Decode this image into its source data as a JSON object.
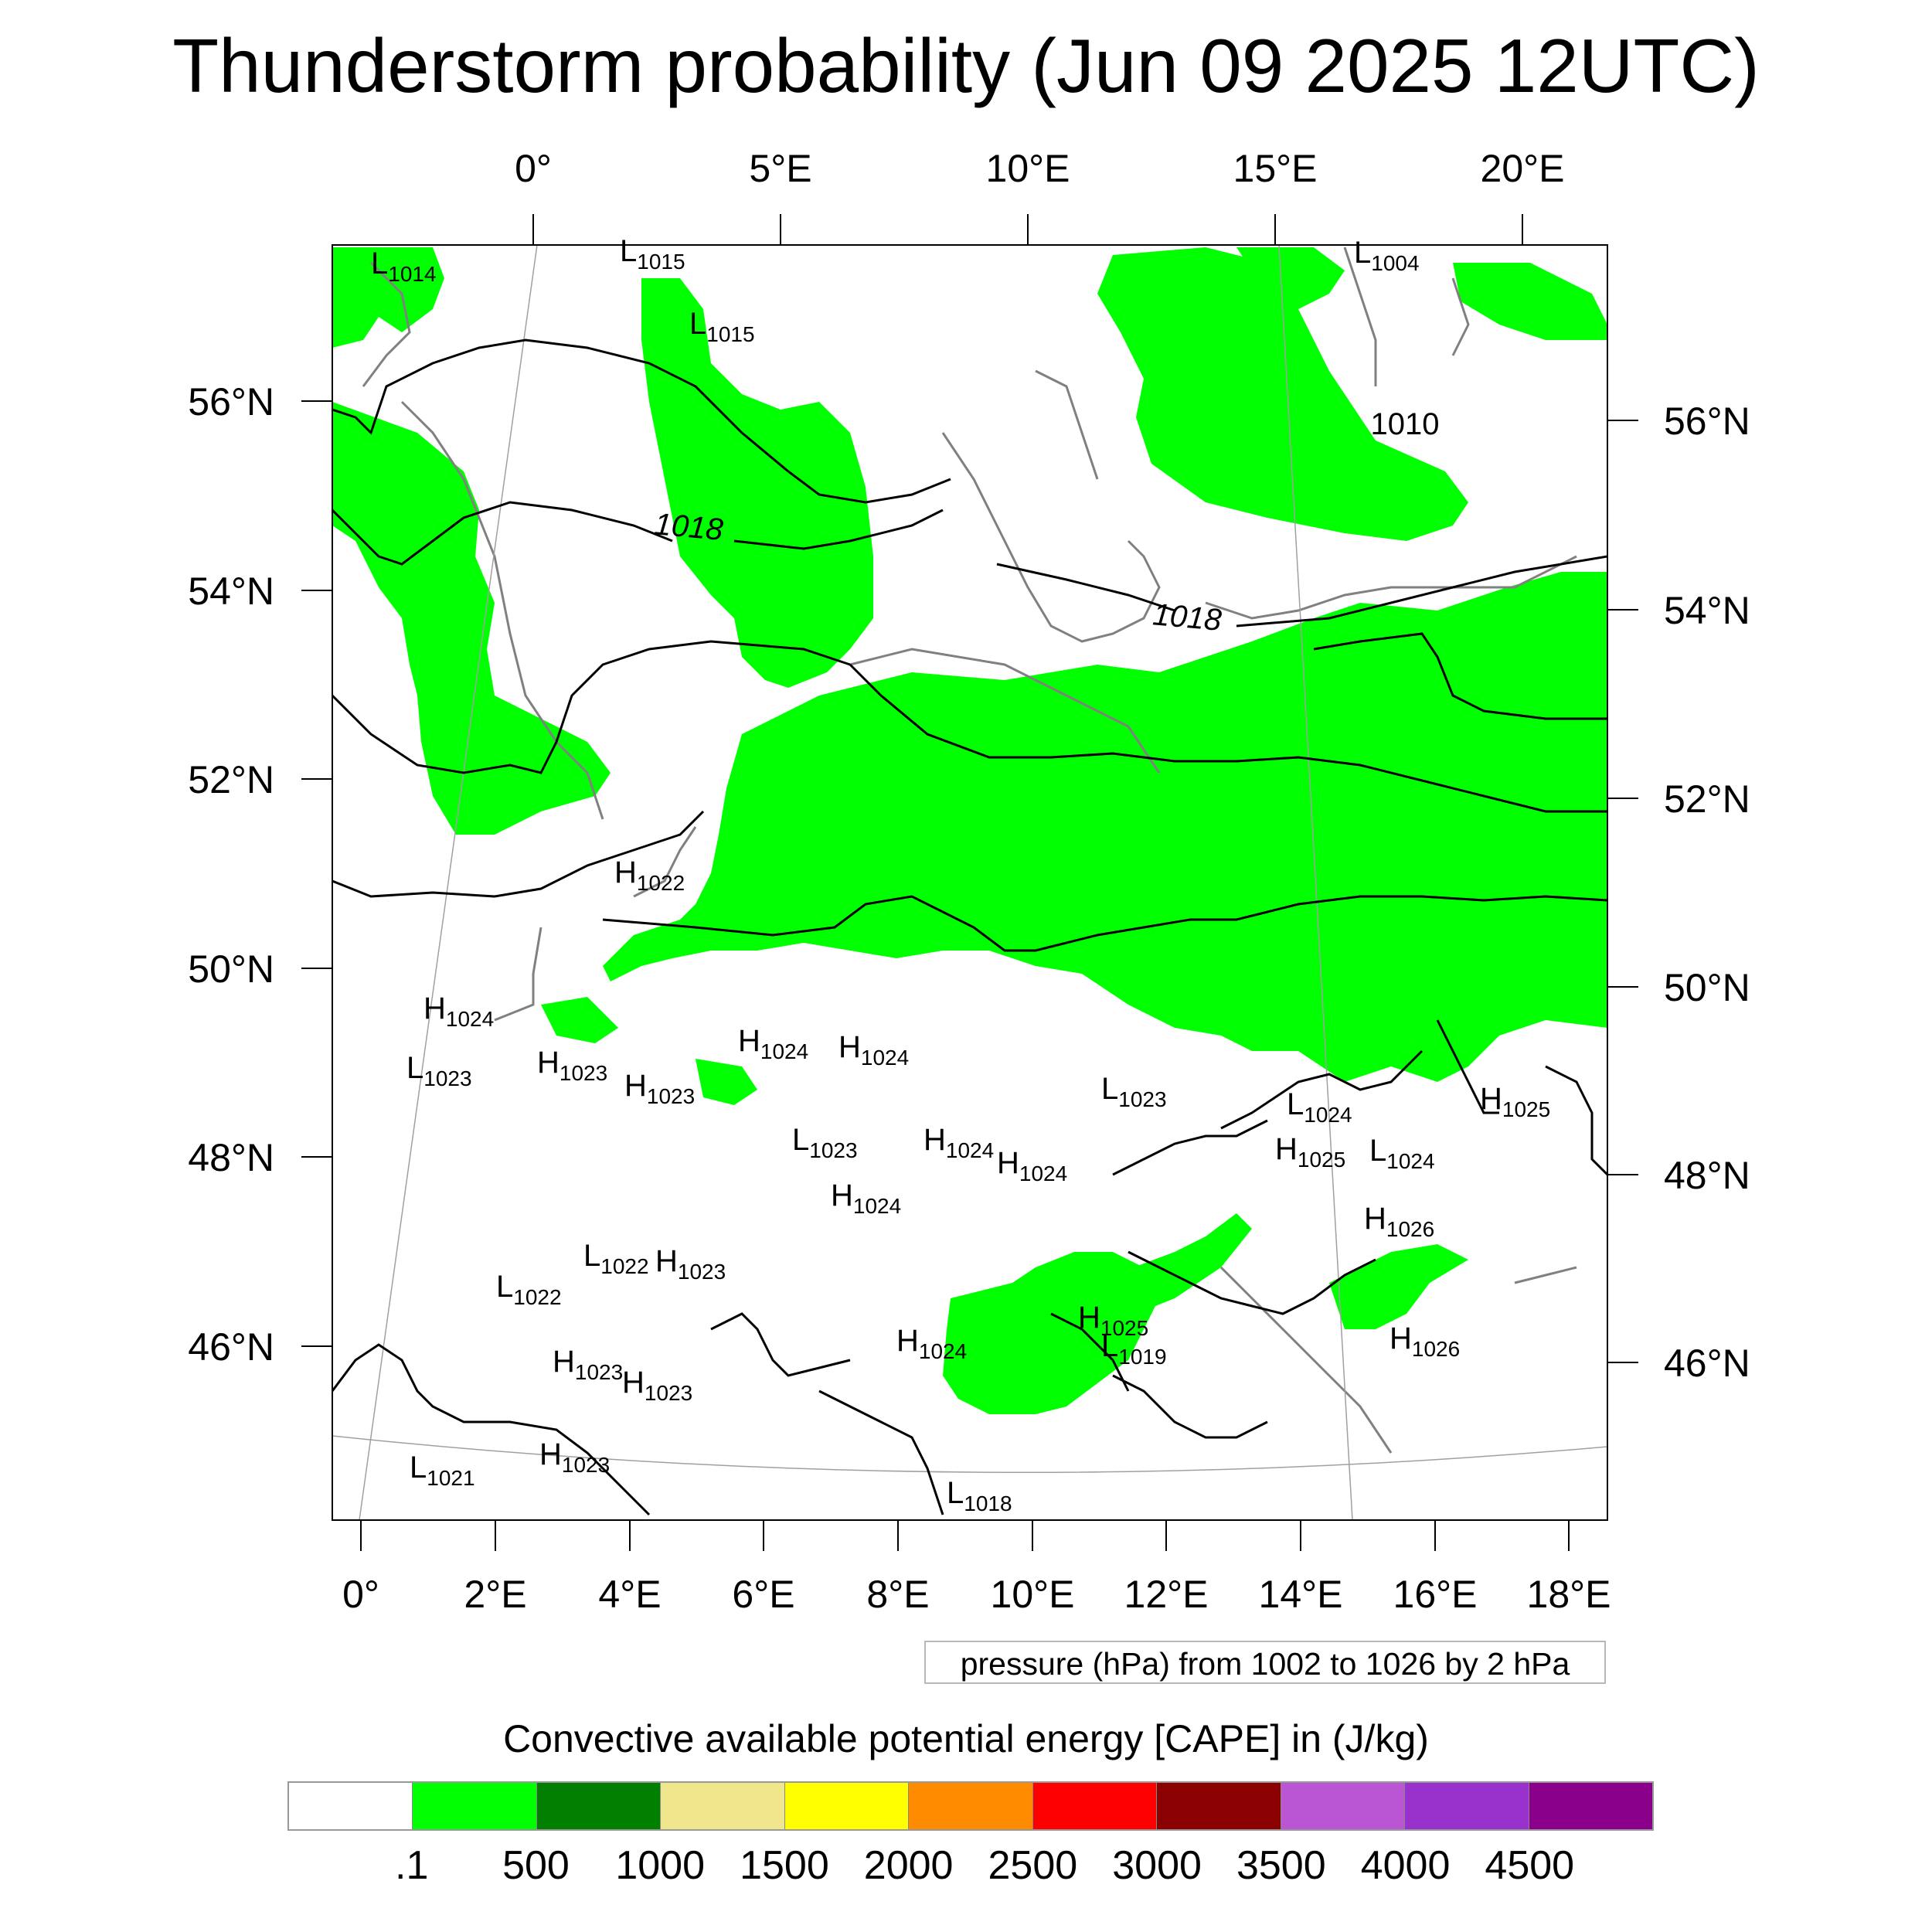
{
  "title": "Thunderstorm probability (Jun 09 2025 12UTC)",
  "top_lon_labels": [
    "0°",
    "5°E",
    "10°E",
    "15°E",
    "20°E"
  ],
  "bottom_lon_labels": [
    "0°",
    "2°E",
    "4°E",
    "6°E",
    "8°E",
    "10°E",
    "12°E",
    "14°E",
    "16°E",
    "18°E"
  ],
  "left_lat_labels": [
    "56°N",
    "54°N",
    "52°N",
    "50°N",
    "48°N",
    "46°N"
  ],
  "right_lat_labels": [
    "56°N",
    "54°N",
    "52°N",
    "50°N",
    "48°N",
    "46°N"
  ],
  "contour_labels": [
    "1018",
    "1018",
    "1010"
  ],
  "pressure_centers": [
    {
      "type": "L",
      "value": "1014"
    },
    {
      "type": "L",
      "value": "1015"
    },
    {
      "type": "L",
      "value": "1015"
    },
    {
      "type": "L",
      "value": "1004"
    },
    {
      "type": "H",
      "value": "1022"
    },
    {
      "type": "H",
      "value": "1024"
    },
    {
      "type": "L",
      "value": "1023"
    },
    {
      "type": "H",
      "value": "1023"
    },
    {
      "type": "H",
      "value": "1023"
    },
    {
      "type": "H",
      "value": "1024"
    },
    {
      "type": "H",
      "value": "1024"
    },
    {
      "type": "L",
      "value": "1023"
    },
    {
      "type": "L",
      "value": "1024"
    },
    {
      "type": "H",
      "value": "1025"
    },
    {
      "type": "L",
      "value": "1023"
    },
    {
      "type": "H",
      "value": "1024"
    },
    {
      "type": "H",
      "value": "1024"
    },
    {
      "type": "L",
      "value": "1024"
    },
    {
      "type": "H",
      "value": "1025"
    },
    {
      "type": "H",
      "value": "1024"
    },
    {
      "type": "H",
      "value": "1026"
    },
    {
      "type": "L",
      "value": "1022"
    },
    {
      "type": "H",
      "value": "1023"
    },
    {
      "type": "L",
      "value": "1022"
    },
    {
      "type": "H",
      "value": "1025"
    },
    {
      "type": "L",
      "value": "1019"
    },
    {
      "type": "H",
      "value": "1024"
    },
    {
      "type": "H",
      "value": "1026"
    },
    {
      "type": "H",
      "value": "1023"
    },
    {
      "type": "H",
      "value": "1023"
    },
    {
      "type": "L",
      "value": "1021"
    },
    {
      "type": "H",
      "value": "1023"
    },
    {
      "type": "L",
      "value": "1018"
    }
  ],
  "contour_info": "pressure (hPa) from 1002 to 1026 by 2 hPa",
  "legend": {
    "title": "Convective available potential energy [CAPE] in (J/kg)",
    "colors": [
      "#ffffff",
      "#00ff00",
      "#007f00",
      "#f0e68c",
      "#ffff00",
      "#ff8c00",
      "#ff0000",
      "#8b0000",
      "#ba55d3",
      "#9932cc",
      "#8b008b"
    ],
    "labels": [
      ".1",
      "500",
      "1000",
      "1500",
      "2000",
      "2500",
      "3000",
      "3500",
      "4000",
      "4500"
    ]
  },
  "colors": {
    "cape_green": "#00ff00",
    "isobar": "#000000",
    "coastline": "#808080",
    "graticule": "#a0a0a0"
  }
}
